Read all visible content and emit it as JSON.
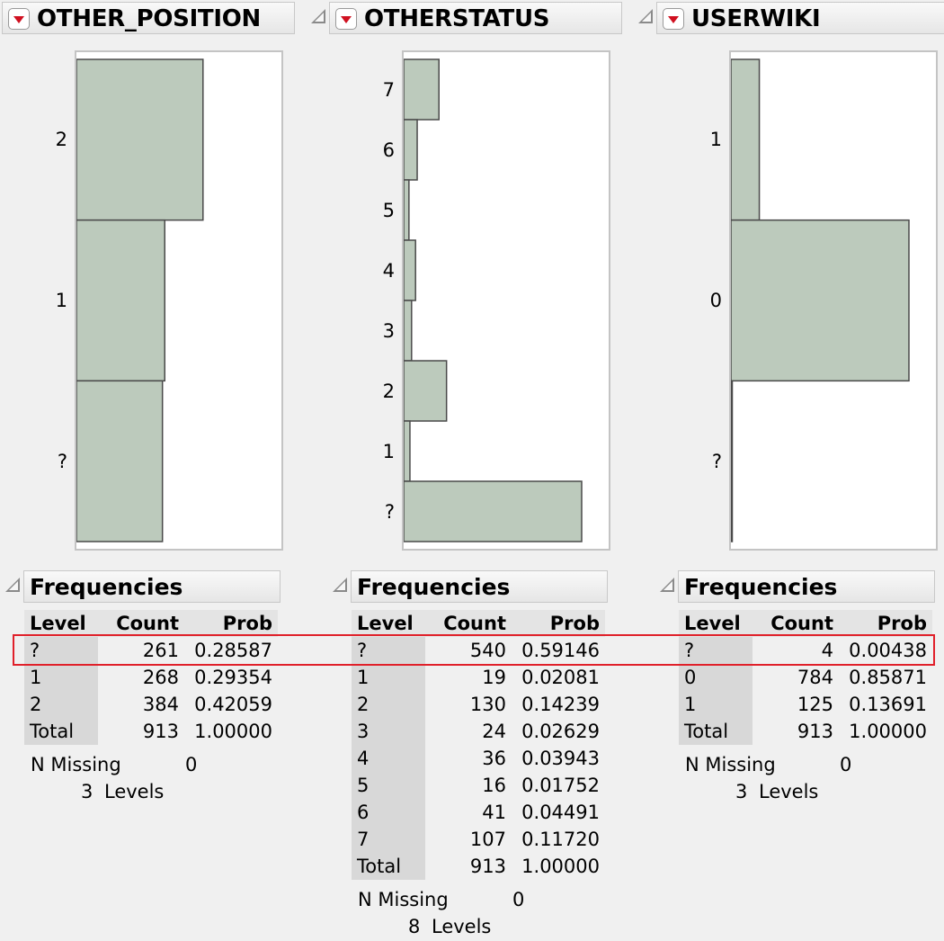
{
  "panels": [
    {
      "title": "OTHER_POSITION",
      "chart_data": {
        "type": "bar",
        "orientation": "horizontal",
        "categories": [
          "2",
          "1",
          "?"
        ],
        "values": [
          384,
          268,
          261
        ]
      },
      "frequencies": {
        "title": "Frequencies",
        "headers": [
          "Level",
          "Count",
          "Prob"
        ],
        "rows": [
          [
            "?",
            "261",
            "0.28587"
          ],
          [
            "1",
            "268",
            "0.29354"
          ],
          [
            "2",
            "384",
            "0.42059"
          ],
          [
            "Total",
            "913",
            "1.00000"
          ]
        ],
        "n_missing_label": "N Missing",
        "n_missing": "0",
        "levels_count": "3",
        "levels_label": "Levels"
      }
    },
    {
      "title": "OTHERSTATUS",
      "chart_data": {
        "type": "bar",
        "orientation": "horizontal",
        "categories": [
          "7",
          "6",
          "5",
          "4",
          "3",
          "2",
          "1",
          "?"
        ],
        "values": [
          107,
          41,
          16,
          36,
          24,
          130,
          19,
          540
        ]
      },
      "frequencies": {
        "title": "Frequencies",
        "headers": [
          "Level",
          "Count",
          "Prob"
        ],
        "rows": [
          [
            "?",
            "540",
            "0.59146"
          ],
          [
            "1",
            "19",
            "0.02081"
          ],
          [
            "2",
            "130",
            "0.14239"
          ],
          [
            "3",
            "24",
            "0.02629"
          ],
          [
            "4",
            "36",
            "0.03943"
          ],
          [
            "5",
            "16",
            "0.01752"
          ],
          [
            "6",
            "41",
            "0.04491"
          ],
          [
            "7",
            "107",
            "0.11720"
          ],
          [
            "Total",
            "913",
            "1.00000"
          ]
        ],
        "n_missing_label": "N Missing",
        "n_missing": "0",
        "levels_count": "8",
        "levels_label": "Levels"
      }
    },
    {
      "title": "USERWIKI",
      "chart_data": {
        "type": "bar",
        "orientation": "horizontal",
        "categories": [
          "1",
          "0",
          "?"
        ],
        "values": [
          125,
          784,
          4
        ]
      },
      "frequencies": {
        "title": "Frequencies",
        "headers": [
          "Level",
          "Count",
          "Prob"
        ],
        "rows": [
          [
            "?",
            "4",
            "0.00438"
          ],
          [
            "0",
            "784",
            "0.85871"
          ],
          [
            "1",
            "125",
            "0.13691"
          ],
          [
            "Total",
            "913",
            "1.00000"
          ]
        ],
        "n_missing_label": "N Missing",
        "n_missing": "0",
        "levels_count": "3",
        "levels_label": "Levels"
      }
    }
  ],
  "colors": {
    "bar_fill": "#bccabc",
    "bar_stroke": "#4a4a4a",
    "highlight": "#e0202a"
  }
}
